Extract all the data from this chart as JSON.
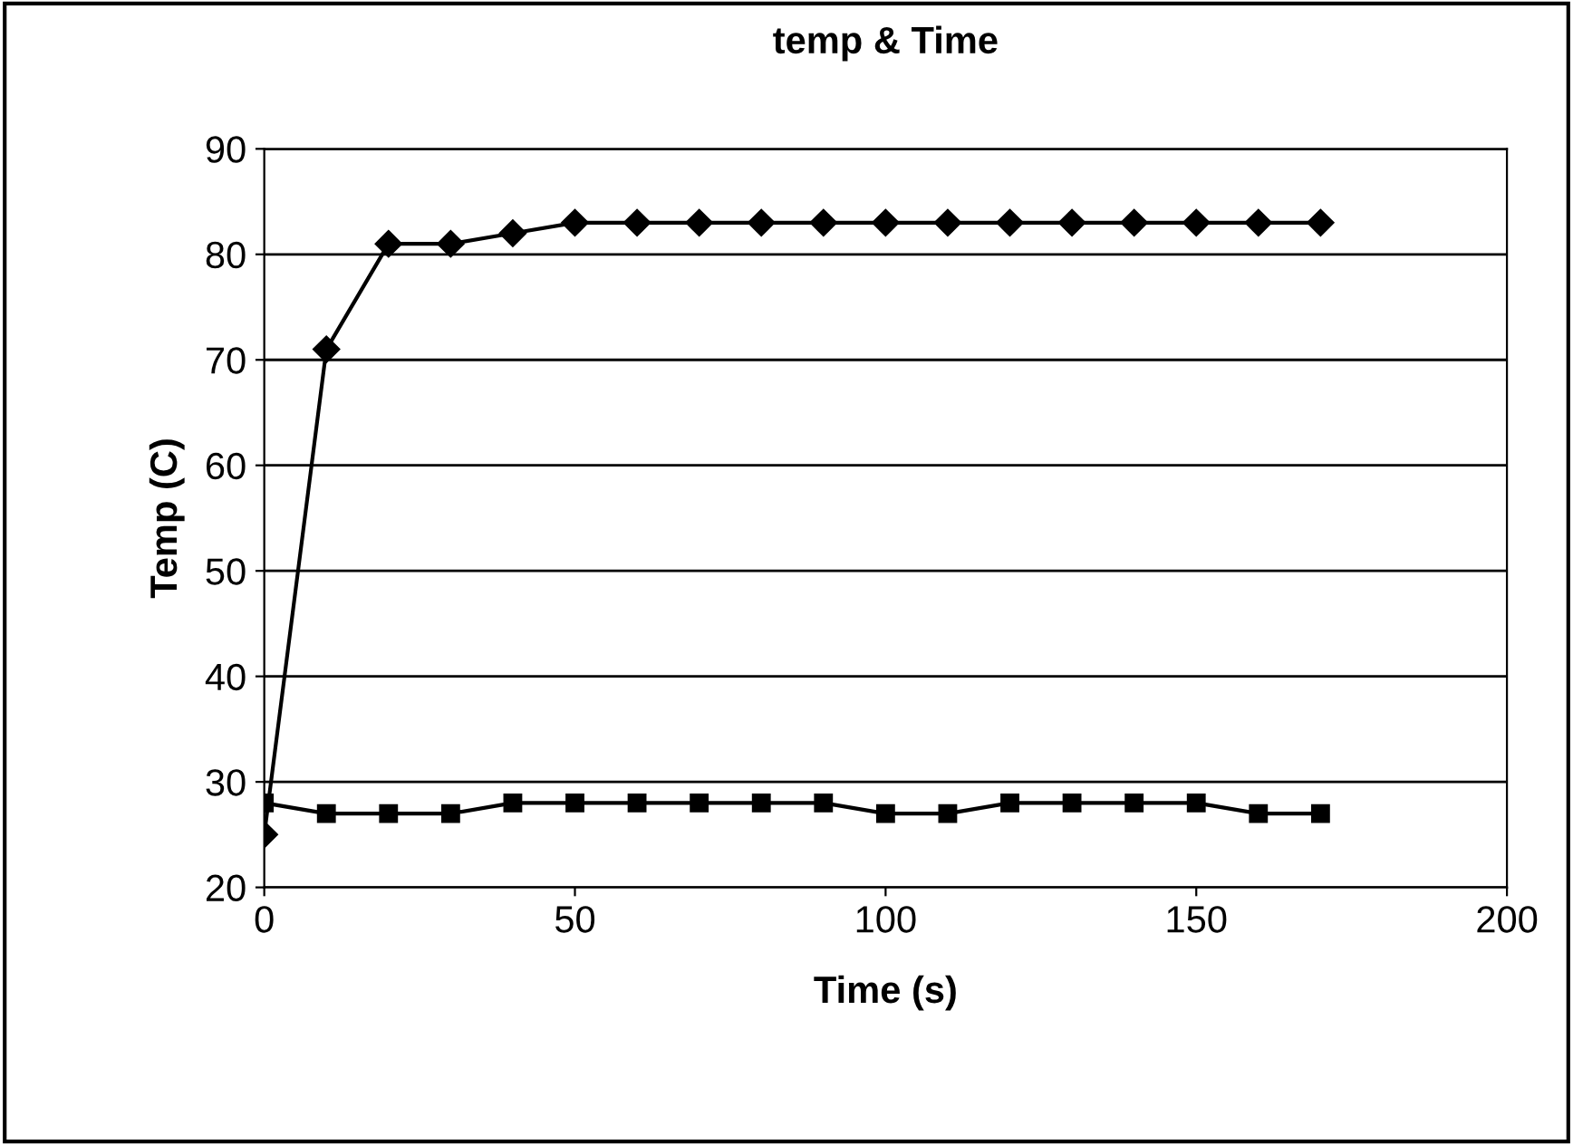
{
  "chart_data": {
    "type": "line",
    "title": "temp & Time",
    "xlabel": "Time (s)",
    "ylabel": "Temp (C)",
    "x": [
      0,
      10,
      20,
      30,
      40,
      50,
      60,
      70,
      80,
      90,
      100,
      110,
      120,
      130,
      140,
      150,
      160,
      170
    ],
    "series": [
      {
        "color": "#000000",
        "marker": "diamond",
        "values": [
          25,
          71,
          81,
          81,
          82,
          83,
          83,
          83,
          83,
          83,
          83,
          83,
          83,
          83,
          83,
          83,
          83,
          83
        ]
      },
      {
        "color": "#000000",
        "marker": "square",
        "values": [
          28,
          27,
          27,
          27,
          28,
          28,
          28,
          28,
          28,
          28,
          27,
          27,
          28,
          28,
          28,
          28,
          27,
          27
        ]
      }
    ],
    "xlim": [
      0,
      200
    ],
    "xticks": [
      0,
      50,
      100,
      150,
      200
    ],
    "ylim": [
      20,
      90
    ],
    "yticks": [
      20,
      30,
      40,
      50,
      60,
      70,
      80,
      90
    ],
    "grid": "y",
    "line_style": "solid"
  }
}
